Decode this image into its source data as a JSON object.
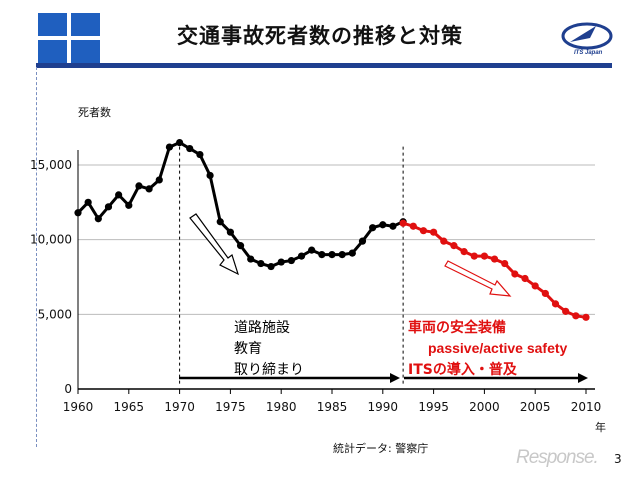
{
  "header": {
    "title": "交通事故死者数の推移と対策",
    "logo_text": "ITS Japan",
    "brand_color": "#1f3f8f"
  },
  "chart_data": {
    "type": "line",
    "ylabel": "死者数",
    "xunit": "年",
    "xlim": [
      1960,
      2010
    ],
    "ylim": [
      0,
      16500
    ],
    "xticks": [
      1960,
      1965,
      1970,
      1975,
      1980,
      1985,
      1990,
      1995,
      2000,
      2005,
      2010
    ],
    "yticks": [
      0,
      5000,
      10000,
      15000
    ],
    "ytick_labels": [
      "0",
      "5,000",
      "10,000",
      "15,000"
    ],
    "grid": "horizontal",
    "series": [
      {
        "color": "#000000",
        "x": [
          1960,
          1961,
          1962,
          1963,
          1964,
          1965,
          1966,
          1967,
          1968,
          1969,
          1970,
          1971,
          1972,
          1973,
          1974,
          1975,
          1976,
          1977,
          1978,
          1979,
          1980,
          1981,
          1982,
          1983,
          1984,
          1985,
          1986,
          1987,
          1988,
          1989,
          1990,
          1991,
          1992
        ],
        "y": [
          11800,
          12500,
          11400,
          12200,
          13000,
          12300,
          13600,
          13400,
          14000,
          16200,
          16500,
          16100,
          15700,
          14300,
          11200,
          10500,
          9600,
          8700,
          8400,
          8200,
          8500,
          8600,
          8900,
          9300,
          9000,
          9000,
          9000,
          9100,
          9900,
          10800,
          11000,
          10900,
          11200
        ]
      },
      {
        "color": "#e01010",
        "x": [
          1992,
          1993,
          1994,
          1995,
          1996,
          1997,
          1998,
          1999,
          2000,
          2001,
          2002,
          2003,
          2004,
          2005,
          2006,
          2007,
          2008,
          2009,
          2010
        ],
        "y": [
          11100,
          10900,
          10600,
          10500,
          9900,
          9600,
          9200,
          8900,
          8900,
          8700,
          8400,
          7700,
          7400,
          6900,
          6400,
          5700,
          5200,
          4900,
          4800
        ]
      }
    ],
    "markers": [
      1970,
      1992
    ],
    "annotations": {
      "period1_lines": [
        "道路施設",
        "教育",
        "取り締まり"
      ],
      "period2_line1": "車両の安全装備",
      "period2_line2": "passive/active safety",
      "period2_line3": "ITSの導入・普及"
    }
  },
  "footer": {
    "source_note": "統計データ: 警察庁",
    "page_number": "3",
    "watermark": "Response."
  }
}
